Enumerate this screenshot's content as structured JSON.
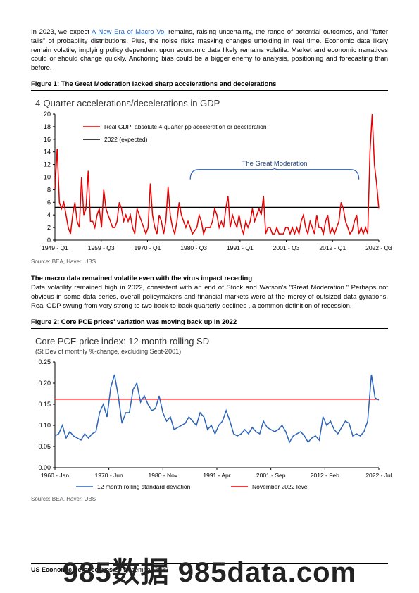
{
  "intro": {
    "prefix": "In 2023, we expect ",
    "link_text": "A New Era of Macro Vol ",
    "rest": "remains, raising uncertainty, the range of potential outcomes, and \"fatter tails\" of probability distributions. Plus, the noise risks masking changes unfolding in real time. Economic data likely remain volatile, implying policy dependent upon economic data likely remains volatile. Market and economic narratives could or should change quickly. Anchoring bias could be a bigger enemy to analysis, positioning and forecasting than before."
  },
  "fig1": {
    "label": "Figure 1: The Great Moderation lacked sharp accelerations and decelerations",
    "chart_title": "4-Quarter accelerations/decelerations in GDP",
    "legend_series": "Real GDP: absolute 4-quarter pp acceleration or deceleration",
    "legend_ref": "2022 (expected)",
    "annotation": "The Great Moderation",
    "source": "Source: BEA, Haver, UBS",
    "colors": {
      "series": "#e60000",
      "ref_line": "#000000",
      "axis": "#000000",
      "annotation": "#1c3f7a",
      "bracket": "#2a63b8"
    },
    "ylim": [
      0,
      20
    ],
    "ytick_step": 2,
    "ref_value": 5.2,
    "x_labels": [
      "1949 - Q1",
      "1959 - Q3",
      "1970 - Q1",
      "1980 - Q3",
      "1991 - Q1",
      "2001 - Q3",
      "2012 - Q1",
      "2022 - Q3"
    ],
    "values": [
      8,
      14.5,
      6,
      5,
      6,
      4,
      2,
      1,
      4,
      6,
      3,
      2,
      10,
      4,
      5,
      11,
      3,
      3,
      2,
      4,
      5,
      2,
      8,
      5,
      4,
      3,
      2,
      2,
      3,
      6,
      5,
      3,
      4,
      3,
      4,
      2,
      1,
      5,
      4,
      3,
      2,
      1,
      2,
      9,
      4,
      2,
      1,
      4,
      3,
      1,
      3,
      8.5,
      4,
      2,
      1,
      3,
      6,
      4,
      3,
      2,
      3,
      2,
      1,
      1.5,
      2,
      4,
      3,
      1,
      2,
      2,
      2,
      3,
      5,
      4,
      2,
      3,
      2,
      5,
      7,
      2,
      4,
      3,
      2,
      4,
      2,
      1,
      3,
      2,
      3,
      5,
      3,
      4,
      5,
      4,
      7,
      1,
      2,
      2,
      1,
      1,
      2,
      1,
      1,
      1,
      2,
      2,
      1,
      2,
      1,
      2,
      1,
      3,
      4,
      2,
      1,
      3,
      2,
      1,
      4,
      2,
      2,
      1,
      3,
      4,
      1,
      2,
      1,
      2,
      3,
      6,
      5,
      3,
      2,
      1,
      1.5,
      3,
      4,
      1,
      2,
      1,
      2,
      1,
      14,
      20,
      12,
      9,
      5
    ],
    "bracket_range_idx": [
      61,
      137
    ]
  },
  "section2": {
    "heading": "The macro data remained volatile even with the virus impact receding",
    "body": "Data volatility remained high in 2022, consistent with an end of Stock and Watson's \"Great Moderation.\" Perhaps not obvious in some data series, overall policymakers and financial markets were at the mercy of outsized data gyrations. Real GDP swung from very strong to two back-to-back quarterly declines , a common definition of recession."
  },
  "fig2": {
    "label": "Figure 2: Core PCE prices' variation was moving back up in 2022",
    "chart_title": "Core PCE price index: 12-month rolling SD",
    "chart_subtitle": "(St Dev of monthly %-change, excluding Sept-2001)",
    "legend_series": "12 month rolling standard deviation",
    "legend_ref": "November 2022 level",
    "source": "Source: BEA, Haver, UBS",
    "colors": {
      "series": "#2a63b8",
      "ref_line": "#e60000",
      "axis": "#000000"
    },
    "ylim": [
      0.0,
      0.25
    ],
    "ytick_step": 0.05,
    "ref_value": 0.162,
    "x_labels": [
      "1960 - Jan",
      "1970 - Jun",
      "1980 - Nov",
      "1991 - Apr",
      "2001 - Sep",
      "2012 - Feb",
      "2022 - Jul"
    ],
    "values": [
      0.075,
      0.08,
      0.1,
      0.07,
      0.085,
      0.075,
      0.07,
      0.065,
      0.08,
      0.07,
      0.08,
      0.085,
      0.13,
      0.15,
      0.12,
      0.19,
      0.22,
      0.17,
      0.105,
      0.13,
      0.13,
      0.185,
      0.2,
      0.155,
      0.17,
      0.15,
      0.135,
      0.14,
      0.17,
      0.13,
      0.11,
      0.12,
      0.09,
      0.095,
      0.1,
      0.105,
      0.12,
      0.11,
      0.1,
      0.13,
      0.12,
      0.09,
      0.1,
      0.08,
      0.1,
      0.11,
      0.135,
      0.11,
      0.08,
      0.075,
      0.08,
      0.09,
      0.08,
      0.095,
      0.085,
      0.08,
      0.11,
      0.095,
      0.09,
      0.085,
      0.09,
      0.1,
      0.085,
      0.06,
      0.075,
      0.08,
      0.085,
      0.075,
      0.06,
      0.07,
      0.075,
      0.065,
      0.12,
      0.1,
      0.11,
      0.09,
      0.08,
      0.095,
      0.11,
      0.105,
      0.075,
      0.08,
      0.075,
      0.085,
      0.11,
      0.22,
      0.165,
      0.16
    ]
  },
  "footer": {
    "title": "US Economic Perspectives",
    "date": "29 December 2022"
  },
  "watermark": "985数据 985data.com"
}
